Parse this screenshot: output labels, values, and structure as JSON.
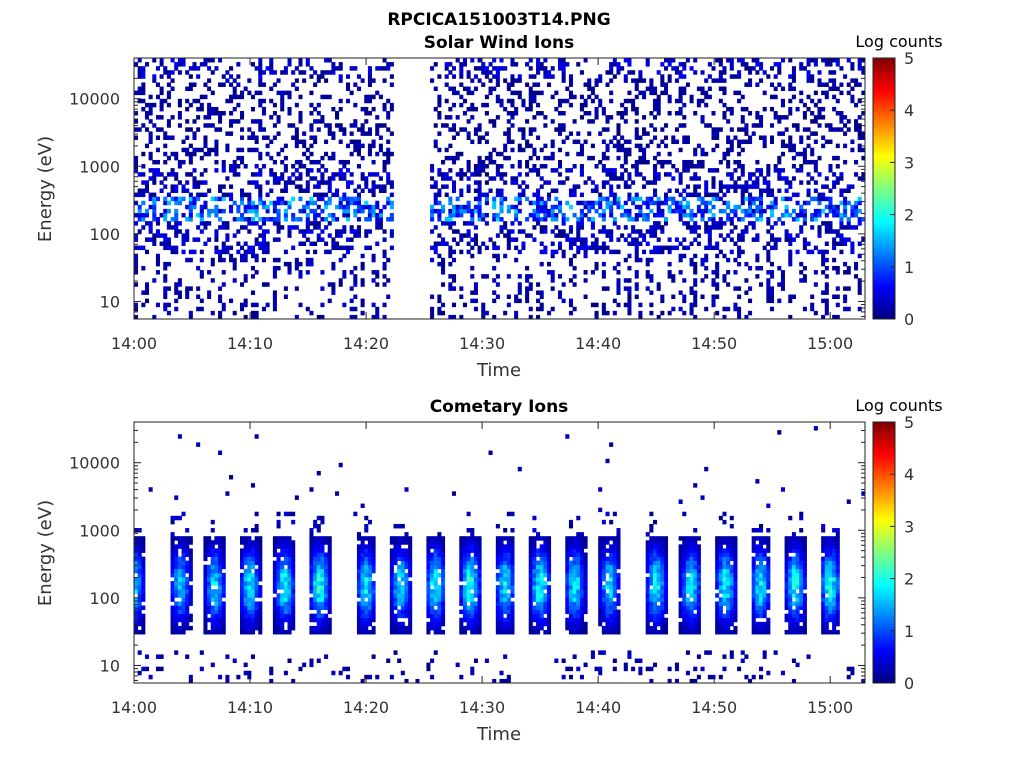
{
  "figure_title": "RPCICA151003T14.PNG",
  "colormap": [
    "#00007f",
    "#0000ff",
    "#0080ff",
    "#00ffff",
    "#80ff80",
    "#ffff00",
    "#ff8000",
    "#ff0000",
    "#7f0000"
  ],
  "chart_data": [
    {
      "type": "heatmap",
      "title": "Solar Wind Ions",
      "xlabel": "Time",
      "ylabel": "Energy (eV)",
      "xlim": [
        "14:00",
        "15:03"
      ],
      "ylim": [
        5.5,
        40000
      ],
      "yscale": "log",
      "xticks": [
        "14:00",
        "14:10",
        "14:20",
        "14:30",
        "14:40",
        "14:50",
        "15:00"
      ],
      "yticks": [
        "10",
        "100",
        "1000",
        "10000"
      ],
      "colorbar": {
        "title": "Log counts",
        "range": [
          0,
          5
        ],
        "ticks": [
          "0",
          "1",
          "2",
          "3",
          "4",
          "5"
        ]
      },
      "data_gaps": [
        [
          "14:22:30",
          "14:25:30"
        ]
      ],
      "features": [
        {
          "energy_band_eV": [
            150,
            350
          ],
          "log_counts": 1.5,
          "description": "scattered enhancements"
        },
        {
          "energy_band_eV": [
            1000,
            20000
          ],
          "log_counts": 0.3,
          "description": "sparse background counts"
        }
      ],
      "legend": "colorbar-right"
    },
    {
      "type": "heatmap",
      "title": "Cometary Ions",
      "xlabel": "Time",
      "ylabel": "Energy (eV)",
      "xlim": [
        "14:00",
        "15:03"
      ],
      "ylim": [
        5.5,
        40000
      ],
      "yscale": "log",
      "xticks": [
        "14:00",
        "14:10",
        "14:20",
        "14:30",
        "14:40",
        "14:50",
        "15:00"
      ],
      "yticks": [
        "10",
        "100",
        "1000",
        "10000"
      ],
      "colorbar": {
        "title": "Log counts",
        "range": [
          0,
          5
        ],
        "ticks": [
          "0",
          "1",
          "2",
          "3",
          "4",
          "5"
        ]
      },
      "bursts": [
        {
          "time": "14:00",
          "log_counts_peak": 1.9
        },
        {
          "time": "14:04",
          "log_counts_peak": 1.8
        },
        {
          "time": "14:07",
          "log_counts_peak": 1.9
        },
        {
          "time": "14:10",
          "log_counts_peak": 2.0
        },
        {
          "time": "14:13",
          "log_counts_peak": 2.1
        },
        {
          "time": "14:16",
          "log_counts_peak": 2.2
        },
        {
          "time": "14:20",
          "log_counts_peak": 2.0
        },
        {
          "time": "14:23",
          "log_counts_peak": 1.9
        },
        {
          "time": "14:26",
          "log_counts_peak": 2.1
        },
        {
          "time": "14:29",
          "log_counts_peak": 2.3
        },
        {
          "time": "14:32",
          "log_counts_peak": 2.0
        },
        {
          "time": "14:35",
          "log_counts_peak": 2.2
        },
        {
          "time": "14:38",
          "log_counts_peak": 2.0
        },
        {
          "time": "14:41",
          "log_counts_peak": 1.9
        },
        {
          "time": "14:45",
          "log_counts_peak": 2.1
        },
        {
          "time": "14:48",
          "log_counts_peak": 2.0
        },
        {
          "time": "14:51",
          "log_counts_peak": 2.1
        },
        {
          "time": "14:54",
          "log_counts_peak": 2.0
        },
        {
          "time": "14:57",
          "log_counts_peak": 2.1
        },
        {
          "time": "15:00",
          "log_counts_peak": 2.2
        }
      ],
      "energy_band_eV": [
        40,
        600
      ],
      "legend": "colorbar-right"
    }
  ]
}
